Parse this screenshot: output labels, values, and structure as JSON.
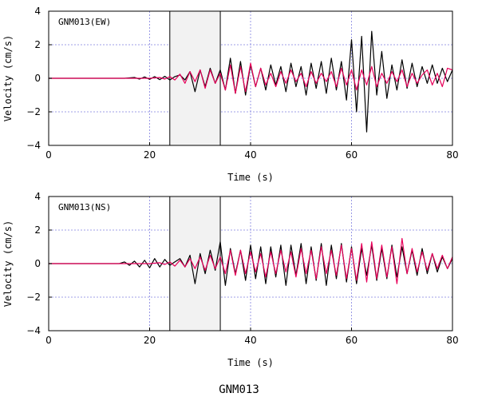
{
  "caption": "GNM013",
  "colors": {
    "black_trace": "#000000",
    "red_trace": "#e8005a",
    "grid": "#8080e0",
    "window_fill": "#f2f2f2",
    "window_stroke": "#000000"
  },
  "chart_data": [
    {
      "type": "line",
      "panel_label": "GNM013(EW)",
      "xlabel": "Time  (s)",
      "ylabel": "Velocity  (cm/s)",
      "xlim": [
        0,
        80
      ],
      "ylim": [
        -4,
        4
      ],
      "xticks": [
        0,
        20,
        40,
        60,
        80
      ],
      "yticks": [
        -4,
        -2,
        0,
        2,
        4
      ],
      "grid": true,
      "highlight_window": [
        24,
        34
      ],
      "series": [
        {
          "color": "#000000",
          "x": [
            0,
            15,
            17,
            18,
            19,
            20,
            21,
            22,
            23,
            24,
            25,
            26,
            27,
            28,
            29,
            30,
            31,
            32,
            33,
            34,
            35,
            36,
            37,
            38,
            39,
            40,
            41,
            42,
            43,
            44,
            45,
            46,
            47,
            48,
            49,
            50,
            51,
            52,
            53,
            54,
            55,
            56,
            57,
            58,
            59,
            60,
            61,
            62,
            63,
            64,
            65,
            66,
            67,
            68,
            69,
            70,
            71,
            72,
            73,
            74,
            75,
            76,
            77,
            78,
            79,
            80
          ],
          "y": [
            0,
            0,
            0.05,
            -0.05,
            0.08,
            -0.06,
            0.1,
            -0.08,
            0.12,
            -0.1,
            0.1,
            0.2,
            -0.1,
            0.4,
            -0.8,
            0.5,
            -0.5,
            0.6,
            -0.3,
            0.5,
            -0.7,
            1.2,
            -0.9,
            1.0,
            -1.0,
            0.8,
            -0.5,
            0.6,
            -0.7,
            0.8,
            -0.4,
            0.7,
            -0.8,
            0.9,
            -0.5,
            0.7,
            -1.0,
            0.9,
            -0.6,
            1.0,
            -0.9,
            1.2,
            -0.7,
            1.0,
            -1.3,
            2.3,
            -2.0,
            2.5,
            -3.2,
            2.8,
            -1.0,
            1.6,
            -1.2,
            0.8,
            -0.7,
            1.1,
            -0.6,
            0.9,
            -0.5,
            0.7,
            -0.3,
            0.8,
            -0.3,
            0.6,
            -0.2,
            0.5
          ]
        },
        {
          "color": "#e8005a",
          "x": [
            0,
            20,
            22,
            23,
            24,
            25,
            26,
            27,
            28,
            29,
            30,
            31,
            32,
            33,
            34,
            35,
            36,
            37,
            38,
            39,
            40,
            41,
            42,
            43,
            44,
            45,
            46,
            47,
            48,
            49,
            50,
            51,
            52,
            53,
            54,
            55,
            56,
            57,
            58,
            59,
            60,
            61,
            62,
            63,
            64,
            65,
            66,
            67,
            68,
            69,
            70,
            71,
            72,
            73,
            74,
            75,
            76,
            77,
            78,
            79,
            80
          ],
          "y": [
            0,
            0,
            0.05,
            -0.05,
            0.1,
            -0.1,
            0.25,
            -0.3,
            0.4,
            -0.2,
            0.5,
            -0.6,
            0.5,
            -0.3,
            0.3,
            -0.7,
            0.8,
            -0.9,
            0.7,
            -0.8,
            0.9,
            -0.5,
            0.6,
            -0.4,
            0.3,
            -0.5,
            0.4,
            -0.3,
            0.5,
            -0.2,
            0.3,
            -0.5,
            0.4,
            -0.3,
            0.3,
            -0.2,
            0.4,
            -0.5,
            0.6,
            -0.4,
            0.5,
            -0.7,
            0.5,
            -0.4,
            0.7,
            -0.5,
            0.3,
            -0.3,
            0.4,
            -0.2,
            0.5,
            -0.5,
            0.3,
            -0.3,
            0.2,
            0.5,
            -0.4,
            0.3,
            -0.5,
            0.6,
            0.5
          ]
        }
      ]
    },
    {
      "type": "line",
      "panel_label": "GNM013(NS)",
      "xlabel": "Time  (s)",
      "ylabel": "Velocity  (cm/s)",
      "xlim": [
        0,
        80
      ],
      "ylim": [
        -4,
        4
      ],
      "xticks": [
        0,
        20,
        40,
        60,
        80
      ],
      "yticks": [
        -4,
        -2,
        0,
        2,
        4
      ],
      "grid": true,
      "highlight_window": [
        24,
        34
      ],
      "series": [
        {
          "color": "#000000",
          "x": [
            0,
            14,
            15,
            16,
            17,
            18,
            19,
            20,
            21,
            22,
            23,
            24,
            25,
            26,
            27,
            28,
            29,
            30,
            31,
            32,
            33,
            34,
            35,
            36,
            37,
            38,
            39,
            40,
            41,
            42,
            43,
            44,
            45,
            46,
            47,
            48,
            49,
            50,
            51,
            52,
            53,
            54,
            55,
            56,
            57,
            58,
            59,
            60,
            61,
            62,
            63,
            64,
            65,
            66,
            67,
            68,
            69,
            70,
            71,
            72,
            73,
            74,
            75,
            76,
            77,
            78,
            79,
            80
          ],
          "y": [
            0,
            0,
            0.1,
            -0.1,
            0.15,
            -0.2,
            0.2,
            -0.25,
            0.3,
            -0.2,
            0.25,
            -0.1,
            0.1,
            0.3,
            -0.2,
            0.5,
            -1.2,
            0.6,
            -0.6,
            0.8,
            -0.4,
            1.3,
            -1.3,
            0.9,
            -0.6,
            0.8,
            -1.0,
            1.1,
            -0.9,
            1.0,
            -1.2,
            1.0,
            -0.8,
            1.1,
            -1.3,
            1.1,
            -0.7,
            1.2,
            -1.2,
            1.0,
            -1.0,
            1.2,
            -1.3,
            1.1,
            -0.9,
            1.2,
            -1.1,
            1.0,
            -1.2,
            0.9,
            -0.7,
            1.1,
            -1.0,
            0.9,
            -0.9,
            1.1,
            -0.8,
            1.0,
            -0.6,
            0.8,
            -0.7,
            0.9,
            -0.6,
            0.6,
            -0.5,
            0.4,
            -0.3,
            0.3
          ]
        },
        {
          "color": "#e8005a",
          "x": [
            0,
            20,
            22,
            23,
            24,
            25,
            26,
            27,
            28,
            29,
            30,
            31,
            32,
            33,
            34,
            35,
            36,
            37,
            38,
            39,
            40,
            41,
            42,
            43,
            44,
            45,
            46,
            47,
            48,
            49,
            50,
            51,
            52,
            53,
            54,
            55,
            56,
            57,
            58,
            59,
            60,
            61,
            62,
            63,
            64,
            65,
            66,
            67,
            68,
            69,
            70,
            71,
            72,
            73,
            74,
            75,
            76,
            77,
            78,
            79,
            80
          ],
          "y": [
            0,
            0,
            0.05,
            -0.05,
            0.1,
            -0.15,
            0.2,
            -0.2,
            0.3,
            -0.3,
            0.4,
            -0.4,
            0.5,
            -0.3,
            0.4,
            -0.6,
            0.8,
            -0.7,
            0.8,
            -0.6,
            0.7,
            -0.5,
            0.6,
            -0.8,
            0.7,
            -0.6,
            0.8,
            -0.5,
            0.7,
            -0.8,
            0.9,
            -0.6,
            0.8,
            -0.9,
            1.0,
            -0.6,
            0.8,
            -0.7,
            1.1,
            -0.9,
            0.9,
            -1.0,
            1.2,
            -1.1,
            1.3,
            -0.9,
            1.1,
            -0.8,
            1.0,
            -1.2,
            1.5,
            -0.6,
            0.9,
            -0.5,
            0.7,
            -0.4,
            0.6,
            -0.3,
            0.5,
            -0.3,
            0.4
          ]
        }
      ]
    }
  ]
}
